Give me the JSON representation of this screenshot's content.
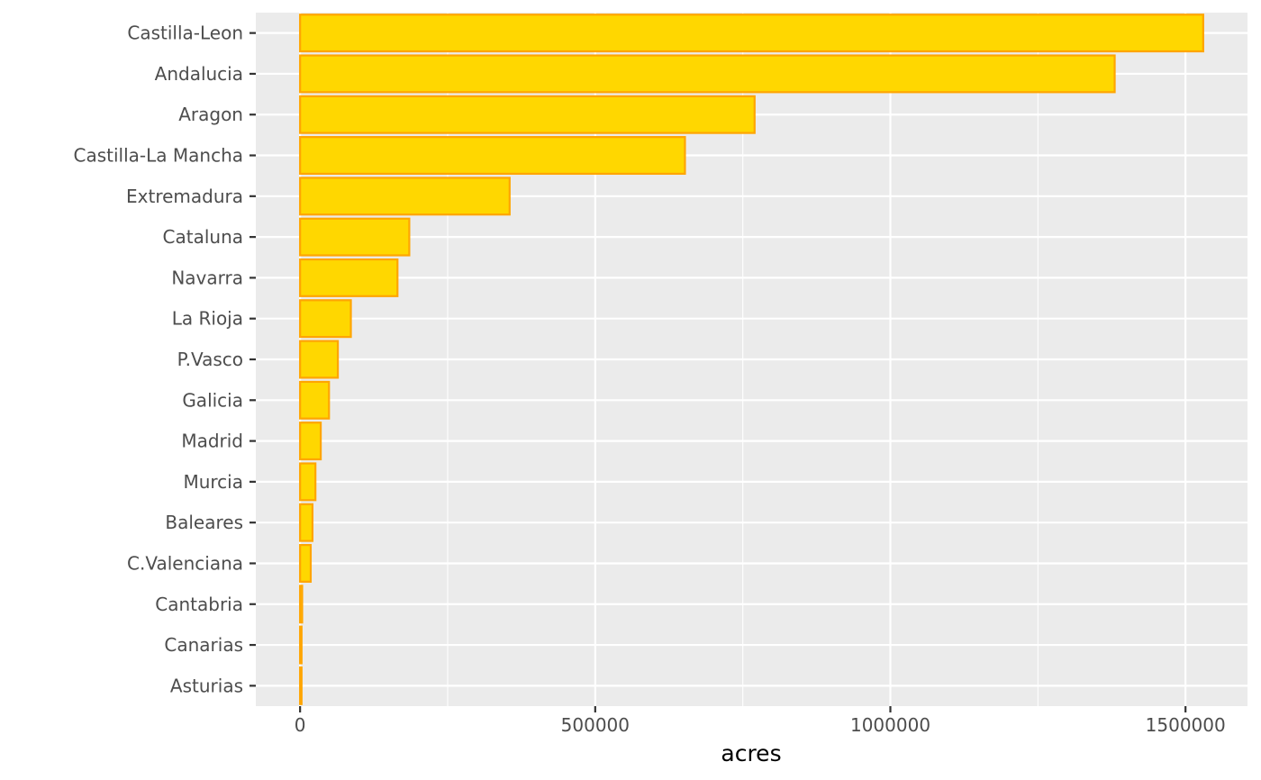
{
  "chart_data": {
    "type": "bar",
    "orientation": "horizontal",
    "title": "",
    "xlabel": "acres",
    "ylabel": "",
    "categories": [
      "Castilla-Leon",
      "Andalucia",
      "Aragon",
      "Castilla-La Mancha",
      "Extremadura",
      "Cataluna",
      "Navarra",
      "La Rioja",
      "P.Vasco",
      "Galicia",
      "Madrid",
      "Murcia",
      "Baleares",
      "C.Valenciana",
      "Cantabria",
      "Canarias",
      "Asturias"
    ],
    "values": [
      1530000,
      1380000,
      770000,
      652000,
      355000,
      185000,
      165000,
      86000,
      64000,
      49000,
      35000,
      26000,
      21000,
      18000,
      3500,
      2500,
      2500
    ],
    "xlim": [
      -75000,
      1605000
    ],
    "xticks": [
      0,
      500000,
      1000000,
      1500000
    ],
    "xtick_labels": [
      "0",
      "500000",
      "1000000",
      "1500000"
    ],
    "grid": true,
    "colors": {
      "bar_fill": "#FFD700",
      "bar_stroke": "#FFA500",
      "panel_bg": "#EBEBEB",
      "grid": "#FFFFFF",
      "tick_text": "#4D4D4D",
      "tick_mark": "#333333"
    }
  }
}
